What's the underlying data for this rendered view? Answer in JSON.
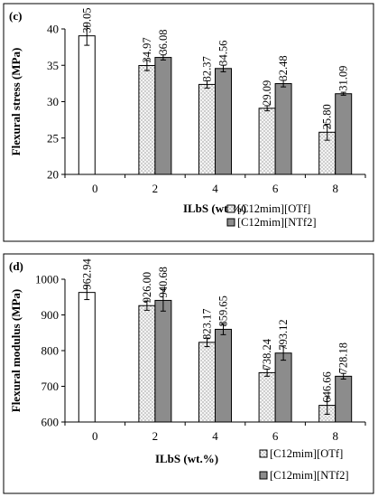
{
  "colors": {
    "otf_fill": "#f4f4f4",
    "otf_dot": "#6e6e6e",
    "ntf2_fill": "#8c8c8c",
    "base_fill": "#ffffff"
  },
  "chart_data": [
    {
      "type": "bar",
      "panel_label": "(c)",
      "ylabel": "Flexural stress (MPa)",
      "xlabel": "ILbS (wt.%)",
      "ylim": [
        20,
        40
      ],
      "yticks": [
        "20",
        "25",
        "30",
        "35",
        "40"
      ],
      "yticks_values": [
        20,
        25,
        30,
        35,
        40
      ],
      "categories": [
        "0",
        "2",
        "4",
        "6",
        "8"
      ],
      "baseline": {
        "category": "0",
        "value": 39.05,
        "label": "39.05",
        "error": 1.3
      },
      "legend_position": "bottom-right",
      "series": [
        {
          "name": "[C12mim][OTf]",
          "key": "otf",
          "values": [
            null,
            34.97,
            32.37,
            29.09,
            25.8
          ],
          "labels": [
            "",
            "34.97",
            "32.37",
            "29.09",
            "25.80"
          ],
          "errors": [
            null,
            0.7,
            0.5,
            0.35,
            1.1
          ]
        },
        {
          "name": "[C12mim][NTf2]",
          "key": "ntf2",
          "values": [
            null,
            36.08,
            34.56,
            32.48,
            31.09
          ],
          "labels": [
            "",
            "36.08",
            "34.56",
            "32.48",
            "31.09"
          ],
          "errors": [
            null,
            0.35,
            0.45,
            0.45,
            0.2
          ]
        }
      ]
    },
    {
      "type": "bar",
      "panel_label": "(d)",
      "ylabel": "Flexural modulus (MPa)",
      "xlabel": "ILbS (wt.%)",
      "ylim": [
        600,
        1000
      ],
      "yticks": [
        "600",
        "700",
        "800",
        "900",
        "1000"
      ],
      "yticks_values": [
        600,
        700,
        800,
        900,
        1000
      ],
      "categories": [
        "0",
        "2",
        "4",
        "6",
        "8"
      ],
      "baseline": {
        "category": "0",
        "value": 962.94,
        "label": "962.94",
        "error": 20
      },
      "legend_position": "bottom-right",
      "series": [
        {
          "name": "[C12mim][OTf]",
          "key": "otf",
          "values": [
            null,
            926.0,
            823.17,
            738.24,
            646.66
          ],
          "labels": [
            "",
            "926.00",
            "823.17",
            "738.24",
            "646.66"
          ],
          "errors": [
            null,
            13,
            12,
            10,
            25
          ]
        },
        {
          "name": "[C12mim][NTf2]",
          "key": "ntf2",
          "values": [
            null,
            940.68,
            859.65,
            793.12,
            728.18
          ],
          "labels": [
            "",
            "940.68",
            "859.65",
            "793.12",
            "728.18"
          ],
          "errors": [
            null,
            30,
            15,
            20,
            8
          ]
        }
      ]
    }
  ]
}
